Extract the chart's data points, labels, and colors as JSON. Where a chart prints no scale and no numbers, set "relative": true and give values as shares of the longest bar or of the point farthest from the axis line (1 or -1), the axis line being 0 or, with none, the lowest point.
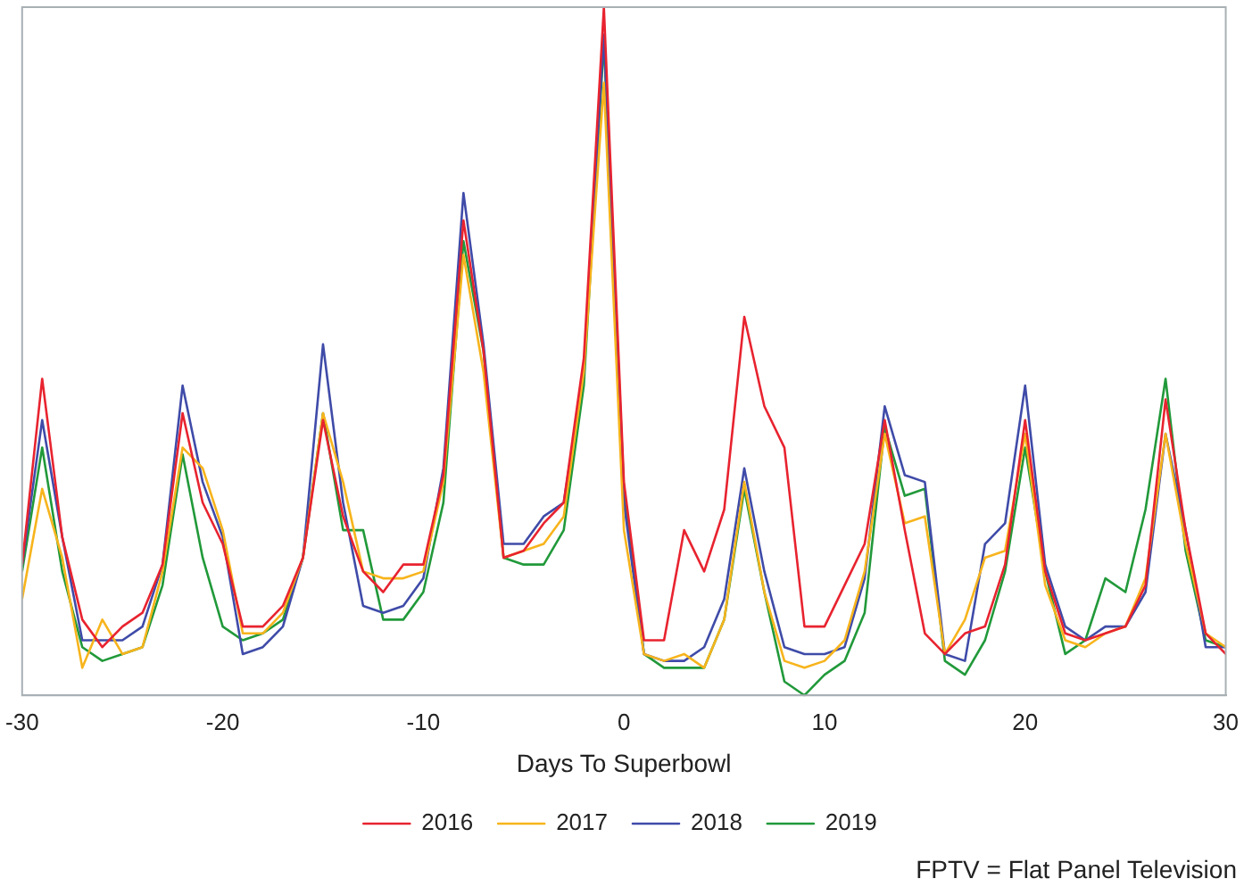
{
  "chart_data": {
    "type": "line",
    "relative": true,
    "xlabel": "Days To Superbowl",
    "x": [
      -30,
      -29,
      -28,
      -27,
      -26,
      -25,
      -24,
      -23,
      -22,
      -21,
      -20,
      -19,
      -18,
      -17,
      -16,
      -15,
      -14,
      -13,
      -12,
      -11,
      -10,
      -9,
      -8,
      -7,
      -6,
      -5,
      -4,
      -3,
      -2,
      -1,
      0,
      1,
      2,
      3,
      4,
      5,
      6,
      7,
      8,
      9,
      10,
      11,
      12,
      13,
      14,
      15,
      16,
      17,
      18,
      19,
      20,
      21,
      22,
      23,
      24,
      25,
      26,
      27,
      28,
      29,
      30
    ],
    "xlim": [
      -30,
      30
    ],
    "xticks": [
      -30,
      -20,
      -10,
      0,
      10,
      20,
      30
    ],
    "series": [
      {
        "name": "2016",
        "color": "#e8232f",
        "values": [
          0.19,
          0.46,
          0.23,
          0.11,
          0.07,
          0.1,
          0.12,
          0.19,
          0.41,
          0.28,
          0.22,
          0.1,
          0.1,
          0.13,
          0.2,
          0.4,
          0.26,
          0.18,
          0.15,
          0.19,
          0.19,
          0.32,
          0.69,
          0.5,
          0.2,
          0.21,
          0.25,
          0.28,
          0.49,
          1.0,
          0.31,
          0.08,
          0.08,
          0.24,
          0.18,
          0.27,
          0.55,
          0.42,
          0.36,
          0.1,
          0.1,
          0.16,
          0.22,
          0.4,
          0.24,
          0.09,
          0.06,
          0.09,
          0.1,
          0.19,
          0.4,
          0.18,
          0.09,
          0.08,
          0.09,
          0.1,
          0.16,
          0.43,
          0.24,
          0.09,
          0.06
        ]
      },
      {
        "name": "2017",
        "color": "#f7b41c",
        "values": [
          0.14,
          0.3,
          0.2,
          0.04,
          0.11,
          0.06,
          0.07,
          0.18,
          0.36,
          0.33,
          0.24,
          0.09,
          0.09,
          0.12,
          0.2,
          0.41,
          0.31,
          0.18,
          0.17,
          0.17,
          0.18,
          0.31,
          0.64,
          0.47,
          0.2,
          0.21,
          0.22,
          0.26,
          0.47,
          0.89,
          0.24,
          0.06,
          0.05,
          0.06,
          0.04,
          0.11,
          0.31,
          0.15,
          0.05,
          0.04,
          0.05,
          0.08,
          0.18,
          0.38,
          0.25,
          0.26,
          0.06,
          0.11,
          0.2,
          0.21,
          0.38,
          0.16,
          0.08,
          0.07,
          0.09,
          0.1,
          0.17,
          0.38,
          0.22,
          0.09,
          0.07
        ]
      },
      {
        "name": "2018",
        "color": "#3f4ba8",
        "values": [
          0.19,
          0.4,
          0.23,
          0.08,
          0.08,
          0.08,
          0.1,
          0.19,
          0.45,
          0.31,
          0.23,
          0.06,
          0.07,
          0.1,
          0.2,
          0.51,
          0.28,
          0.13,
          0.12,
          0.13,
          0.17,
          0.33,
          0.73,
          0.51,
          0.22,
          0.22,
          0.26,
          0.28,
          0.47,
          0.96,
          0.28,
          0.06,
          0.05,
          0.05,
          0.07,
          0.14,
          0.33,
          0.18,
          0.07,
          0.06,
          0.06,
          0.07,
          0.17,
          0.42,
          0.32,
          0.31,
          0.06,
          0.05,
          0.22,
          0.25,
          0.45,
          0.19,
          0.1,
          0.08,
          0.1,
          0.1,
          0.15,
          0.38,
          0.24,
          0.07,
          0.07
        ]
      },
      {
        "name": "2019",
        "color": "#21993a",
        "values": [
          0.18,
          0.36,
          0.18,
          0.07,
          0.05,
          0.06,
          0.07,
          0.16,
          0.35,
          0.2,
          0.1,
          0.08,
          0.09,
          0.11,
          0.2,
          0.41,
          0.24,
          0.24,
          0.11,
          0.11,
          0.15,
          0.28,
          0.66,
          0.5,
          0.2,
          0.19,
          0.19,
          0.24,
          0.45,
          0.95,
          0.3,
          0.06,
          0.04,
          0.04,
          0.04,
          0.11,
          0.3,
          0.15,
          0.02,
          0,
          0.03,
          0.05,
          0.12,
          0.39,
          0.29,
          0.3,
          0.05,
          0.03,
          0.08,
          0.18,
          0.36,
          0.18,
          0.06,
          0.08,
          0.17,
          0.15,
          0.27,
          0.46,
          0.21,
          0.08,
          0.07
        ]
      }
    ],
    "legend": "bottom",
    "marker": "none",
    "line_style": "solid",
    "annotations": [
      "FPTV = Flat Panel Television"
    ]
  }
}
